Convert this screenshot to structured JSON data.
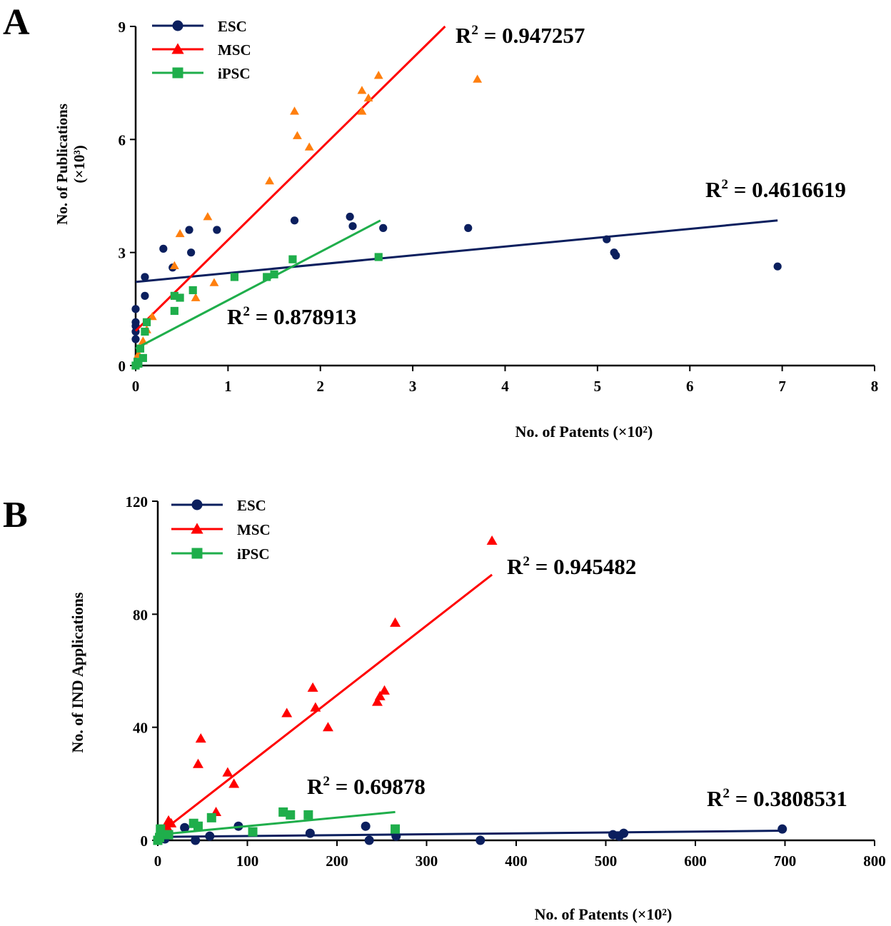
{
  "colors": {
    "esc": "#0b1f5e",
    "msc": "#ff0000",
    "msc_pts_A": "#ff7f0e",
    "ipsc": "#1fae4b",
    "axis": "#000000"
  },
  "chart_data": [
    {
      "panel": "A",
      "type": "scatter",
      "xlabel": "No. of Patents (×10²)",
      "ylabel": "No. of Publications",
      "ylabel2": "(×10³)",
      "xlim": [
        0,
        8
      ],
      "ylim": [
        0,
        9
      ],
      "xticks": [
        0,
        1,
        2,
        3,
        4,
        5,
        6,
        7,
        8
      ],
      "yticks": [
        0,
        3,
        6,
        9
      ],
      "legend": [
        "ESC",
        "MSC",
        "iPSC"
      ],
      "series": [
        {
          "name": "ESC",
          "color_key": "esc",
          "point_color_key": "esc",
          "marker": "circle",
          "points": [
            [
              0,
              1.5
            ],
            [
              0,
              1.15
            ],
            [
              0,
              1.05
            ],
            [
              0,
              0.9
            ],
            [
              0,
              0.7
            ],
            [
              0.1,
              1.85
            ],
            [
              0.1,
              2.35
            ],
            [
              0.3,
              3.1
            ],
            [
              0.4,
              2.6
            ],
            [
              0.58,
              3.6
            ],
            [
              0.6,
              3.0
            ],
            [
              0.88,
              3.6
            ],
            [
              1.72,
              3.85
            ],
            [
              2.32,
              3.95
            ],
            [
              2.35,
              3.7
            ],
            [
              2.68,
              3.65
            ],
            [
              3.6,
              3.65
            ],
            [
              5.1,
              3.35
            ],
            [
              5.18,
              3.0
            ],
            [
              5.2,
              2.92
            ],
            [
              6.95,
              2.63
            ]
          ],
          "fit": {
            "x": [
              0,
              6.95
            ],
            "y": [
              2.22,
              3.85
            ],
            "r2": "0.4616619"
          }
        },
        {
          "name": "MSC",
          "color_key": "msc",
          "point_color_key": "msc_pts_A",
          "marker": "triangle",
          "points": [
            [
              0.03,
              0.3
            ],
            [
              0.08,
              0.65
            ],
            [
              0.12,
              0.95
            ],
            [
              0.18,
              1.3
            ],
            [
              0.42,
              2.65
            ],
            [
              0.48,
              3.5
            ],
            [
              0.65,
              1.8
            ],
            [
              0.78,
              3.95
            ],
            [
              0.85,
              2.2
            ],
            [
              1.45,
              4.9
            ],
            [
              1.72,
              6.75
            ],
            [
              1.75,
              6.1
            ],
            [
              1.88,
              5.8
            ],
            [
              2.45,
              7.3
            ],
            [
              2.45,
              6.75
            ],
            [
              2.52,
              7.1
            ],
            [
              2.63,
              7.7
            ],
            [
              3.7,
              7.6
            ]
          ],
          "fit": {
            "x": [
              0,
              3.35
            ],
            "y": [
              0.92,
              9.0
            ],
            "r2": "0.947257"
          }
        },
        {
          "name": "iPSC",
          "color_key": "ipsc",
          "point_color_key": "ipsc",
          "marker": "square",
          "points": [
            [
              0,
              0
            ],
            [
              0.02,
              0.1
            ],
            [
              0.03,
              0.05
            ],
            [
              0.05,
              0.45
            ],
            [
              0.08,
              0.2
            ],
            [
              0.1,
              0.9
            ],
            [
              0.12,
              1.15
            ],
            [
              0.42,
              1.85
            ],
            [
              0.42,
              1.45
            ],
            [
              0.48,
              1.8
            ],
            [
              0.62,
              2.0
            ],
            [
              1.07,
              2.35
            ],
            [
              1.42,
              2.35
            ],
            [
              1.5,
              2.42
            ],
            [
              1.7,
              2.82
            ],
            [
              2.63,
              2.88
            ]
          ],
          "fit": {
            "x": [
              0,
              2.65
            ],
            "y": [
              0.45,
              3.85
            ],
            "r2": "0.878913"
          }
        }
      ]
    },
    {
      "panel": "B",
      "type": "scatter",
      "xlabel": "No. of Patents (×10²)",
      "ylabel": "No. of IND Applications",
      "xlim": [
        0,
        800
      ],
      "ylim": [
        0,
        120
      ],
      "xticks": [
        0,
        100,
        200,
        300,
        400,
        500,
        600,
        700,
        800
      ],
      "yticks": [
        0,
        40,
        80,
        120
      ],
      "legend": [
        "ESC",
        "MSC",
        "iPSC"
      ],
      "series": [
        {
          "name": "ESC",
          "color_key": "esc",
          "point_color_key": "esc",
          "marker": "circle",
          "points": [
            [
              0,
              0
            ],
            [
              8,
              0.5
            ],
            [
              30,
              4.5
            ],
            [
              42,
              0
            ],
            [
              58,
              1.5
            ],
            [
              90,
              5
            ],
            [
              170,
              2.5
            ],
            [
              232,
              5
            ],
            [
              236,
              0
            ],
            [
              266,
              1.5
            ],
            [
              360,
              0
            ],
            [
              508,
              2
            ],
            [
              515,
              1.5
            ],
            [
              520,
              2.5
            ],
            [
              697,
              4
            ]
          ],
          "fit": {
            "x": [
              0,
              697
            ],
            "y": [
              1.2,
              3.4
            ],
            "r2": "0.3808531"
          }
        },
        {
          "name": "MSC",
          "color_key": "msc",
          "point_color_key": "msc",
          "marker": "triangle",
          "points": [
            [
              10,
              5
            ],
            [
              12,
              7
            ],
            [
              15,
              6
            ],
            [
              45,
              27
            ],
            [
              48,
              36
            ],
            [
              65,
              10
            ],
            [
              78,
              24
            ],
            [
              85,
              20
            ],
            [
              144,
              45
            ],
            [
              173,
              54
            ],
            [
              176,
              47
            ],
            [
              190,
              40
            ],
            [
              245,
              49
            ],
            [
              248,
              51
            ],
            [
              253,
              53
            ],
            [
              265,
              77
            ],
            [
              373,
              106
            ]
          ],
          "fit": {
            "x": [
              0,
              373
            ],
            "y": [
              2,
              94
            ],
            "r2": "0.945482"
          }
        },
        {
          "name": "iPSC",
          "color_key": "ipsc",
          "point_color_key": "ipsc",
          "marker": "square",
          "points": [
            [
              0,
              0
            ],
            [
              2,
              1
            ],
            [
              3,
              4
            ],
            [
              12,
              2
            ],
            [
              40,
              6
            ],
            [
              45,
              5
            ],
            [
              60,
              8
            ],
            [
              106,
              3
            ],
            [
              140,
              10
            ],
            [
              148,
              9
            ],
            [
              168,
              9
            ],
            [
              265,
              4
            ]
          ],
          "fit": {
            "x": [
              0,
              265
            ],
            "y": [
              2,
              10
            ],
            "r2": "0.69878"
          }
        }
      ]
    }
  ],
  "panel_labels": [
    "A",
    "B"
  ],
  "r2_prefix": "R",
  "r2_sup": "2",
  "r2_eq": " = "
}
